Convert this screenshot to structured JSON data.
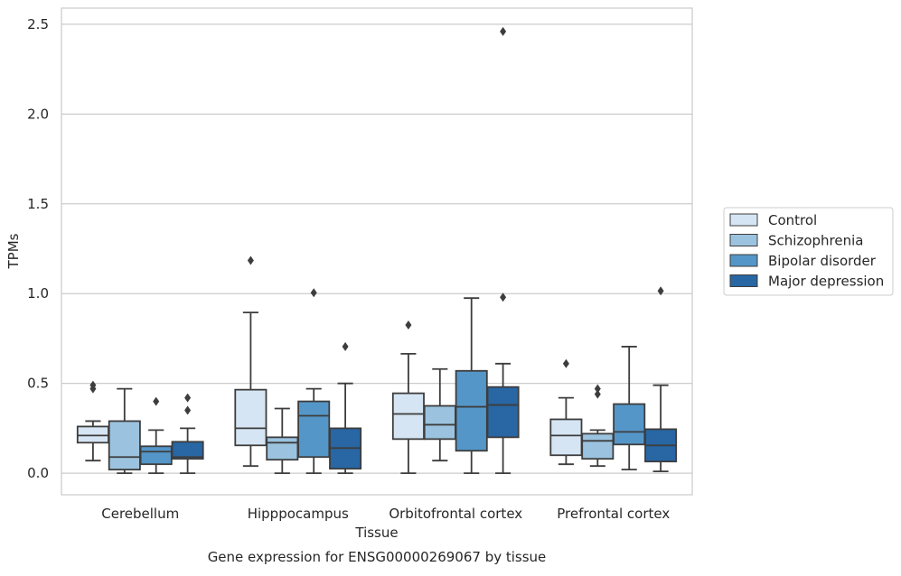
{
  "chart_data": {
    "type": "box",
    "title": "",
    "caption": "Gene expression for ENSG00000269067 by tissue",
    "xlabel": "Tissue",
    "ylabel": "TPMs",
    "ylim": [
      -0.12,
      2.59
    ],
    "yticks": [
      0.0,
      0.5,
      1.0,
      1.5,
      2.0,
      2.5
    ],
    "ytick_labels": [
      "0.0",
      "0.5",
      "1.0",
      "1.5",
      "2.0",
      "2.5"
    ],
    "grid": "horizontal",
    "legend_position": "right",
    "categories": [
      "Cerebellum",
      "Hipppocampus",
      "Orbitofrontal cortex",
      "Prefrontal cortex"
    ],
    "series": [
      {
        "name": "Control",
        "color": "#d6e5f3",
        "boxes": [
          {
            "whislo": 0.07,
            "q1": 0.17,
            "med": 0.21,
            "q3": 0.26,
            "whishi": 0.29,
            "fliers": [
              0.47,
              0.49
            ]
          },
          {
            "whislo": 0.04,
            "q1": 0.155,
            "med": 0.25,
            "q3": 0.465,
            "whishi": 0.895,
            "fliers": [
              1.185
            ]
          },
          {
            "whislo": 0.0,
            "q1": 0.19,
            "med": 0.33,
            "q3": 0.445,
            "whishi": 0.665,
            "fliers": [
              0.825
            ]
          },
          {
            "whislo": 0.05,
            "q1": 0.1,
            "med": 0.21,
            "q3": 0.3,
            "whishi": 0.42,
            "fliers": [
              0.61
            ]
          }
        ]
      },
      {
        "name": "Schizophrenia",
        "color": "#9bc3df",
        "boxes": [
          {
            "whislo": 0.0,
            "q1": 0.02,
            "med": 0.09,
            "q3": 0.29,
            "whishi": 0.47,
            "fliers": []
          },
          {
            "whislo": 0.0,
            "q1": 0.075,
            "med": 0.17,
            "q3": 0.2,
            "whishi": 0.36,
            "fliers": []
          },
          {
            "whislo": 0.07,
            "q1": 0.19,
            "med": 0.27,
            "q3": 0.375,
            "whishi": 0.58,
            "fliers": []
          },
          {
            "whislo": 0.04,
            "q1": 0.08,
            "med": 0.18,
            "q3": 0.22,
            "whishi": 0.24,
            "fliers": [
              0.44,
              0.47
            ]
          }
        ]
      },
      {
        "name": "Bipolar disorder",
        "color": "#5496c8",
        "boxes": [
          {
            "whislo": 0.0,
            "q1": 0.05,
            "med": 0.12,
            "q3": 0.15,
            "whishi": 0.24,
            "fliers": [
              0.4
            ]
          },
          {
            "whislo": 0.0,
            "q1": 0.09,
            "med": 0.32,
            "q3": 0.4,
            "whishi": 0.47,
            "fliers": [
              1.005
            ]
          },
          {
            "whislo": 0.0,
            "q1": 0.125,
            "med": 0.37,
            "q3": 0.57,
            "whishi": 0.975,
            "fliers": []
          },
          {
            "whislo": 0.02,
            "q1": 0.16,
            "med": 0.23,
            "q3": 0.385,
            "whishi": 0.705,
            "fliers": []
          }
        ]
      },
      {
        "name": "Major depression",
        "color": "#2866a4",
        "boxes": [
          {
            "whislo": 0.0,
            "q1": 0.08,
            "med": 0.09,
            "q3": 0.175,
            "whishi": 0.25,
            "fliers": [
              0.35,
              0.42
            ]
          },
          {
            "whislo": 0.0,
            "q1": 0.025,
            "med": 0.14,
            "q3": 0.25,
            "whishi": 0.5,
            "fliers": [
              0.705
            ]
          },
          {
            "whislo": 0.0,
            "q1": 0.2,
            "med": 0.38,
            "q3": 0.48,
            "whishi": 0.61,
            "fliers": [
              0.98,
              2.46
            ]
          },
          {
            "whislo": 0.01,
            "q1": 0.065,
            "med": 0.155,
            "q3": 0.245,
            "whishi": 0.49,
            "fliers": [
              1.015
            ]
          }
        ]
      }
    ]
  }
}
